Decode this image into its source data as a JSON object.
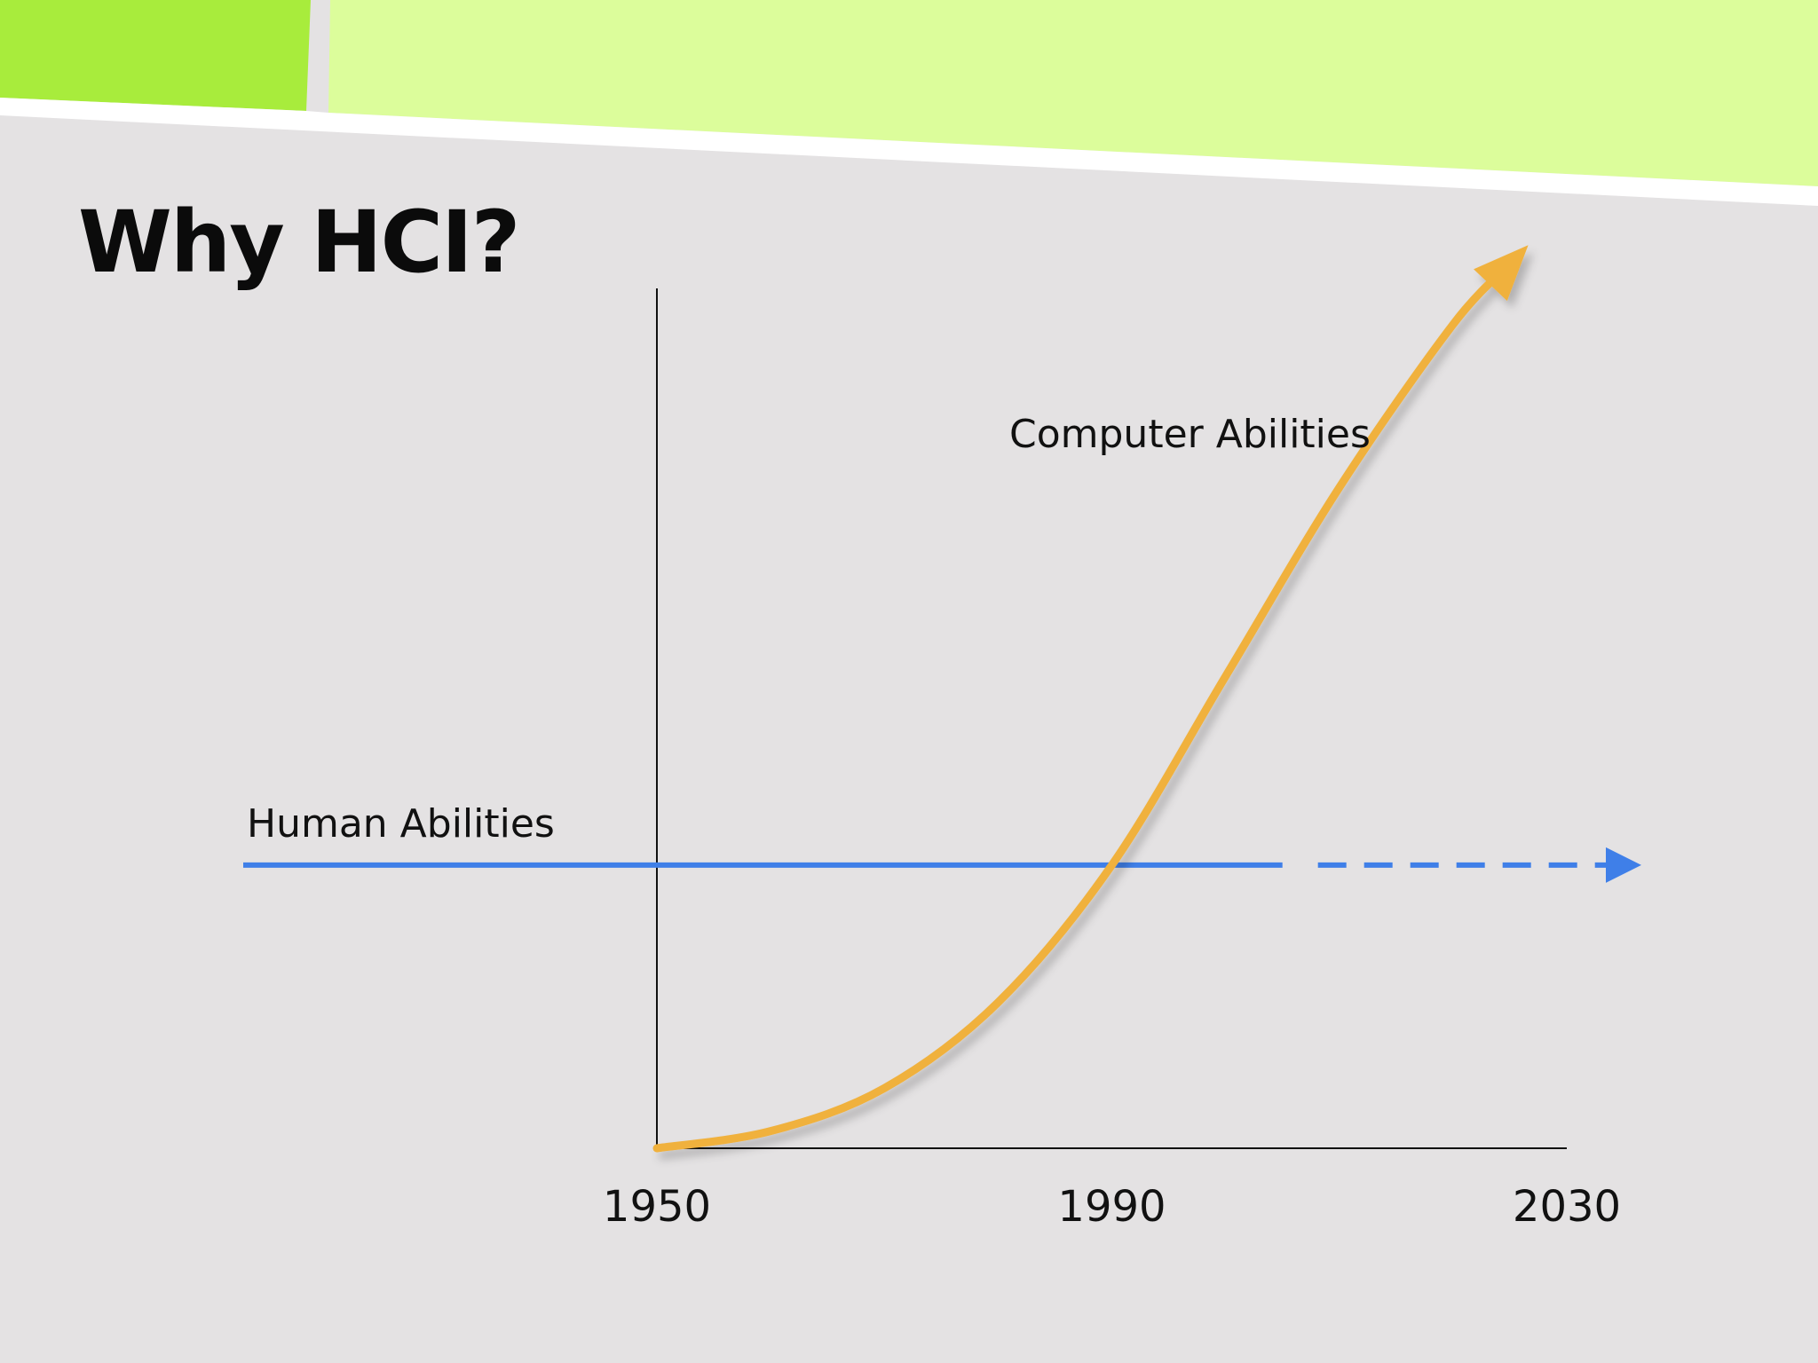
{
  "slide": {
    "title": "Why HCI?"
  },
  "colors": {
    "banner_dark": "#a8ec3c",
    "banner_light": "#dcfd9b",
    "background": "#e4e2e3",
    "human_series": "#3f7fe8",
    "computer_series": "#f0b13e",
    "axis": "#111111"
  },
  "chart_data": {
    "type": "line",
    "title": "",
    "xlabel": "",
    "ylabel": "",
    "x_ticks": [
      "1950",
      "1990",
      "2030"
    ],
    "xlim": [
      1950,
      2030
    ],
    "ylim": [
      0,
      100
    ],
    "grid": false,
    "legend": "none",
    "series": [
      {
        "name": "Human Abilities",
        "style": "solid line ending in dashed arrow",
        "x": [
          1950,
          1990,
          2005,
          2030
        ],
        "y": [
          33,
          33,
          33,
          33
        ],
        "projected_from": 2005
      },
      {
        "name": "Computer Abilities",
        "style": "curve with arrowhead",
        "x": [
          1950,
          1960,
          1970,
          1980,
          1990,
          2000,
          2010,
          2020,
          2025
        ],
        "y": [
          0,
          2,
          7,
          17,
          33,
          55,
          77,
          96,
          103
        ]
      }
    ]
  }
}
